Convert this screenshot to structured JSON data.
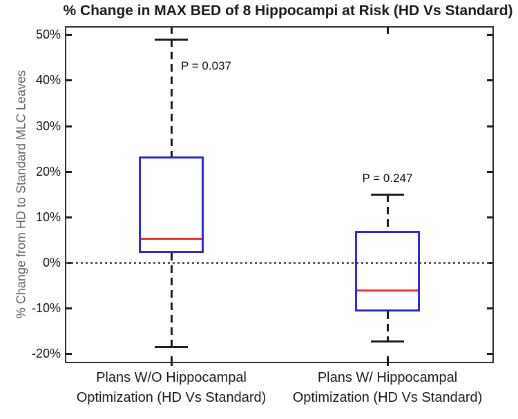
{
  "chart_data": {
    "type": "boxplot",
    "title": "% Change in MAX BED of 8 Hippocampi at Risk (HD Vs Standard)",
    "ylabel": "% Change from HD to Standard MLC Leaves",
    "xlabel": "",
    "ylim": [
      -22,
      52
    ],
    "yticks": [
      50,
      40,
      30,
      20,
      10,
      0,
      -10,
      -20
    ],
    "ytick_suffix": "%",
    "grid": false,
    "zero_reference_line": 0,
    "legend": null,
    "series": [
      {
        "label_lines": [
          "Plans W/O Hippocampal",
          "Optimization (HD Vs Standard)"
        ],
        "whisker_low": -18.5,
        "q1": 2.1,
        "median": 5.3,
        "q3": 23.3,
        "whisker_high": 49,
        "p_label": "P = 0.037",
        "p_label_y": 43,
        "p_label_align": "right-of-whisker"
      },
      {
        "label_lines": [
          "Plans W/ Hippocampal",
          "Optimization (HD Vs Standard)"
        ],
        "whisker_low": -17.3,
        "q1": -10.8,
        "median": -6,
        "q3": 7,
        "whisker_high": 15,
        "p_label": "P = 0.247",
        "p_label_y": 18.3,
        "p_label_align": "center"
      }
    ],
    "colors": {
      "box": "#2a2ad0",
      "median": "#ee3333",
      "whisker": "#1c1c1c",
      "zero_line": "#575757",
      "frame": "#2d2d2d",
      "title_text": "#1a1a1a",
      "axis_label_text": "#636363",
      "tick_text": "#111111"
    }
  }
}
